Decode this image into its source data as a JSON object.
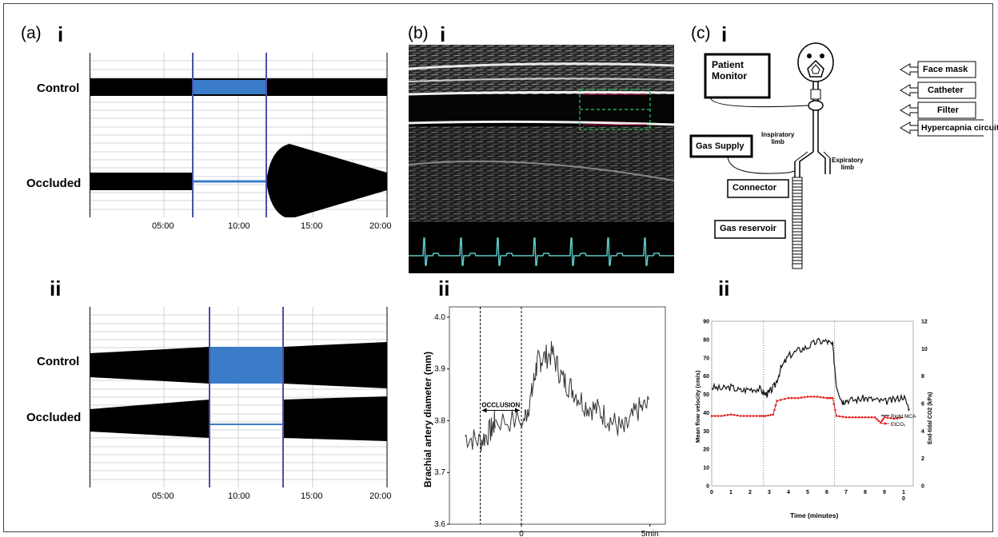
{
  "panels": {
    "a": {
      "label": "(a)",
      "sub_i": "i",
      "sub_ii": "ii",
      "trace_control": "Control",
      "trace_occluded": "Occluded",
      "x_ticks": [
        "05:00",
        "10:00",
        "15:00",
        "20:00"
      ]
    },
    "b": {
      "label": "(b)",
      "sub_i": "i",
      "sub_ii": "ii",
      "chart": {
        "ylabel": "Brachial artery diameter (mm)",
        "y_ticks": [
          "3.6",
          "3.7",
          "3.8",
          "3.9",
          "4.0"
        ],
        "x_ticks": [
          "0",
          "5min"
        ],
        "annotation": "OCCLUSION"
      }
    },
    "c": {
      "label": "(c)",
      "sub_i": "i",
      "sub_ii": "ii",
      "diagram": {
        "patient_monitor": "Patient\nMonitor",
        "face_mask": "Face mask",
        "catheter": "Catheter",
        "filter": "Filter",
        "hypercapnia": "Hypercapnia circuit",
        "gas_supply": "Gas Supply",
        "inspiratory": "Inspiratory\nlimb",
        "expiratory": "Expiratory\nlimb",
        "connector": "Connector",
        "gas_reservoir": "Gas reservoir"
      },
      "chart": {
        "ylabel_left": "Mean flow velocity (cm/s)",
        "ylabel_right": "End-tidal CO2 (kPa)",
        "xlabel": "Time (minutes)",
        "y_left_ticks": [
          "0",
          "10",
          "20",
          "30",
          "40",
          "50",
          "60",
          "70",
          "80",
          "90"
        ],
        "y_right_ticks": [
          "0",
          "2",
          "4",
          "6",
          "8",
          "10",
          "12"
        ],
        "x_ticks": [
          "0",
          "1",
          "2",
          "3",
          "4",
          "5",
          "6",
          "7",
          "8",
          "9",
          "1\n0"
        ],
        "legend": [
          "Right MCA",
          "EtCO₂"
        ]
      }
    }
  },
  "colors": {
    "ink": "#000000",
    "blue_trace": "#3a7cc7",
    "cursor": "#4a50a8",
    "ecg": "#5ec8c8",
    "roi": "#2aa84a",
    "etco2": "#e02020"
  },
  "chart_data": [
    {
      "type": "line",
      "title": "",
      "xlabel": "",
      "ylabel": "Brachial artery diameter (mm)",
      "ylim": [
        3.6,
        4.02
      ],
      "x_ticks": [
        "0",
        "5min"
      ],
      "series": [
        {
          "name": "",
          "x": [
            -2.2,
            -1.6,
            -1.2,
            -1.0,
            0.1,
            0.4,
            0.6,
            0.8,
            1.2,
            1.6,
            2.0,
            2.5,
            3.0,
            3.5,
            4.0,
            4.5,
            5.0
          ],
          "values": [
            3.77,
            3.76,
            3.78,
            3.8,
            3.8,
            3.85,
            3.91,
            3.92,
            3.93,
            3.88,
            3.86,
            3.83,
            3.82,
            3.8,
            3.78,
            3.82,
            3.83
          ]
        }
      ]
    },
    {
      "type": "line",
      "title": "",
      "xlabel": "Time (minutes)",
      "ylabel": "Mean flow velocity (cm/s)",
      "ylabel_right": "End-tidal CO2 (kPa)",
      "ylim": [
        0,
        90
      ],
      "ylim_right": [
        0,
        12
      ],
      "xlim": [
        0,
        10.5
      ],
      "series": [
        {
          "name": "Right MCA",
          "axis": "left",
          "x": [
            0,
            0.5,
            1,
            1.5,
            2,
            2.5,
            2.8,
            3,
            3.3,
            3.6,
            4,
            4.5,
            5,
            5.5,
            6,
            6.3,
            6.5,
            6.8,
            7,
            7.5,
            8,
            8.5,
            9,
            9.5,
            10,
            10.3
          ],
          "values": [
            54,
            53,
            54,
            52,
            53,
            53,
            50,
            51,
            55,
            64,
            71,
            74,
            76,
            79,
            79,
            77,
            55,
            46,
            47,
            47,
            48,
            47,
            46,
            47,
            49,
            42
          ]
        },
        {
          "name": "EtCO₂",
          "axis": "right",
          "x": [
            0,
            0.5,
            1,
            1.5,
            2,
            2.5,
            2.8,
            3.2,
            3.4,
            4,
            4.5,
            5,
            5.5,
            6,
            6.3,
            6.5,
            7,
            7.5,
            8,
            8.5,
            8.8,
            9,
            9.5,
            10
          ],
          "values": [
            5.1,
            5.1,
            5.2,
            5.1,
            5.1,
            5.1,
            5.1,
            5.2,
            6.2,
            6.4,
            6.4,
            6.5,
            6.5,
            6.4,
            6.4,
            5.1,
            5.0,
            5.0,
            5.0,
            5.0,
            4.6,
            5.0,
            4.9,
            5.0
          ]
        }
      ]
    }
  ]
}
